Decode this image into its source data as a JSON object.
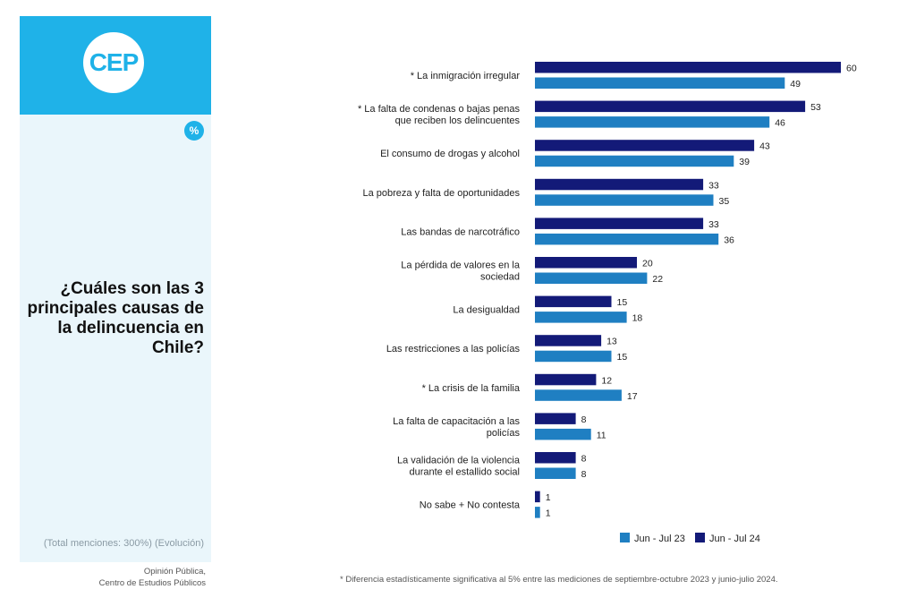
{
  "logo_text": "CEP",
  "percent_badge": "%",
  "question": "¿Cuáles son las 3 principales causas de la delincuencia en Chile?",
  "note": "(Total menciones: 300%) (Evolución)",
  "source_line1": "Opinión Pública,",
  "source_line2": "Centro de Estudios Públicos",
  "footnote": "* Diferencia estadísticamente significativa al 5% entre las mediciones de septiembre-octubre 2023 y junio-julio 2024.",
  "colors": {
    "jun_jul_24": "#131a78",
    "jun_jul_23": "#1f7fc2",
    "accent": "#1fb2e8"
  },
  "chart_data": {
    "type": "bar",
    "orientation": "horizontal",
    "categories": [
      [
        "* La inmigración irregular"
      ],
      [
        "* La falta de condenas o bajas penas",
        "que reciben los delincuentes"
      ],
      [
        "El consumo de drogas y alcohol"
      ],
      [
        "La pobreza y falta de oportunidades"
      ],
      [
        "Las bandas de narcotráfico"
      ],
      [
        "La pérdida de valores en la",
        "sociedad"
      ],
      [
        "La desigualdad"
      ],
      [
        "Las restricciones a las policías"
      ],
      [
        "* La crisis de la familia"
      ],
      [
        "La falta de capacitación a las",
        "policías"
      ],
      [
        "La validación de la violencia",
        "durante el estallido social"
      ],
      [
        "No sabe + No contesta"
      ]
    ],
    "series": [
      {
        "name": "Jun - Jul 24",
        "values": [
          60,
          53,
          43,
          33,
          33,
          20,
          15,
          13,
          12,
          8,
          8,
          1
        ]
      },
      {
        "name": "Jun - Jul 23",
        "values": [
          49,
          46,
          39,
          35,
          36,
          22,
          18,
          15,
          17,
          11,
          8,
          1
        ]
      }
    ],
    "legend": [
      "Jun - Jul 23",
      "Jun - Jul 24"
    ],
    "legend_position": "bottom-right",
    "grid": false
  }
}
